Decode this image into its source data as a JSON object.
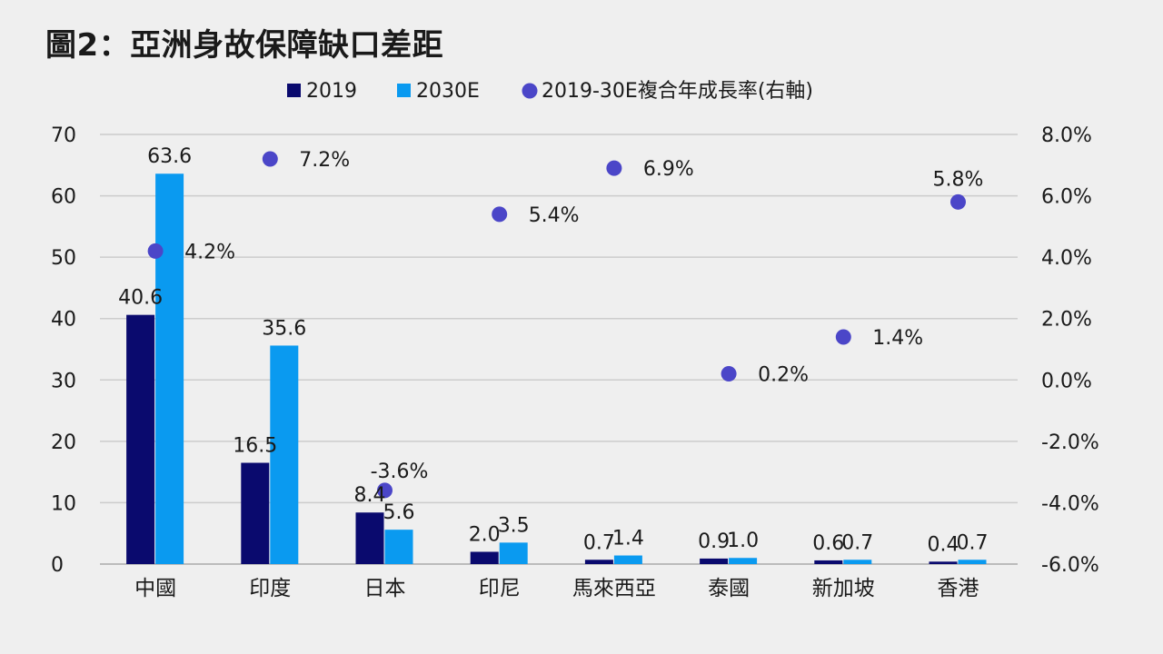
{
  "title": "圖2：亞洲身故保障缺口差距",
  "colors": {
    "background": "#efefef",
    "series_2019": "#0a0a6e",
    "series_2030E": "#0a9af0",
    "series_cagr": "#4b46c8",
    "grid": "#cccccc"
  },
  "chart_data": {
    "type": "bar",
    "title": "圖2：亞洲身故保障缺口差距",
    "categories": [
      "中國",
      "印度",
      "日本",
      "印尼",
      "馬來西亞",
      "泰國",
      "新加坡",
      "香港"
    ],
    "series": [
      {
        "name": "2019",
        "kind": "bar",
        "axis": "left",
        "values": [
          40.6,
          16.5,
          8.4,
          2.0,
          0.7,
          0.9,
          0.6,
          0.4
        ],
        "labels": [
          "40.6",
          "16.5",
          "8.4",
          "2.0",
          "0.7",
          "0.9",
          "0.6",
          "0.4"
        ]
      },
      {
        "name": "2030E",
        "kind": "bar",
        "axis": "left",
        "values": [
          63.6,
          35.6,
          5.6,
          3.5,
          1.4,
          1.0,
          0.7,
          0.7
        ],
        "labels": [
          "63.6",
          "35.6",
          "5.6",
          "3.5",
          "1.4",
          "1.0",
          "0.7",
          "0.7"
        ]
      },
      {
        "name": "2019-30E複合年成長率(右軸)",
        "kind": "scatter",
        "axis": "right",
        "values": [
          4.2,
          7.2,
          -3.6,
          5.4,
          6.9,
          0.2,
          1.4,
          5.8
        ],
        "labels": [
          "4.2%",
          "7.2%",
          "-3.6%",
          "5.4%",
          "6.9%",
          "0.2%",
          "1.4%",
          "5.8%"
        ]
      }
    ],
    "y_left": {
      "min": 0,
      "max": 70,
      "ticks": [
        "0",
        "10",
        "20",
        "30",
        "40",
        "50",
        "60",
        "70"
      ]
    },
    "y_right": {
      "min": -6,
      "max": 8,
      "ticks": [
        "-6.0%",
        "-4.0%",
        "-2.0%",
        "0.0%",
        "2.0%",
        "4.0%",
        "6.0%",
        "8.0%"
      ]
    },
    "grid": true,
    "legend_position": "top"
  }
}
